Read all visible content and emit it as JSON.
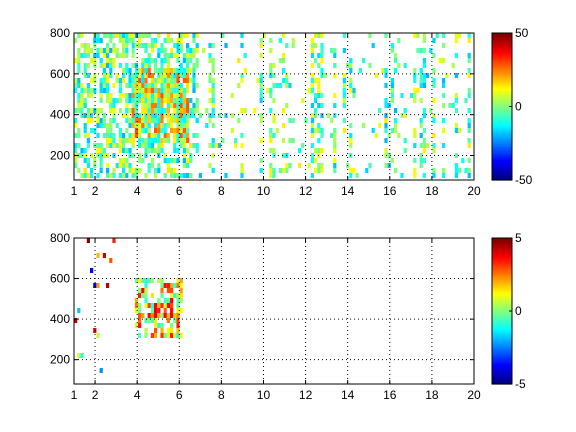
{
  "chart_data": [
    {
      "type": "heatmap",
      "title": "",
      "xlabel": "",
      "ylabel": "",
      "xlim": [
        1,
        20
      ],
      "ylim": [
        80,
        800
      ],
      "x_ticks": [
        1,
        2,
        4,
        6,
        8,
        10,
        12,
        14,
        16,
        18,
        20
      ],
      "x_tick_labels": [
        "1",
        "2",
        "4",
        "6",
        "8",
        "10",
        "12",
        "14",
        "16",
        "18",
        "20"
      ],
      "y_ticks": [
        200,
        400,
        600,
        800
      ],
      "y_tick_labels": [
        "200",
        "400",
        "600",
        "800"
      ],
      "grid": true,
      "colorbar": {
        "colormap": "jet",
        "clim": [
          -50,
          50
        ],
        "ticks": [
          -50,
          0,
          50
        ],
        "tick_labels": [
          "-50",
          "0",
          "50"
        ]
      },
      "pattern": {
        "description_values": "dense scattered cells; strongest cluster",
        "cluster_x": [
          3.8,
          6.4
        ],
        "cluster_y": [
          260,
          640
        ],
        "cluster_value_range": [
          -15,
          30
        ],
        "background_value_range": [
          -20,
          15
        ],
        "background_coverage": "dense for x < 7, sparse vertical streaks for x > 7"
      }
    },
    {
      "type": "heatmap",
      "title": "",
      "xlabel": "",
      "ylabel": "",
      "xlim": [
        1,
        20
      ],
      "ylim": [
        80,
        800
      ],
      "x_ticks": [
        1,
        2,
        4,
        6,
        8,
        10,
        12,
        14,
        16,
        18,
        20
      ],
      "x_tick_labels": [
        "1",
        "2",
        "4",
        "6",
        "8",
        "10",
        "12",
        "14",
        "16",
        "18",
        "20"
      ],
      "y_ticks": [
        200,
        400,
        600,
        800
      ],
      "y_tick_labels": [
        "200",
        "400",
        "600",
        "800"
      ],
      "grid": true,
      "colorbar": {
        "colormap": "jet",
        "clim": [
          -5,
          5
        ],
        "ticks": [
          -5,
          0,
          5
        ],
        "tick_labels": [
          "-5",
          "0",
          "5"
        ]
      },
      "pattern": {
        "cluster_x": [
          3.9,
          6.2
        ],
        "cluster_y": [
          300,
          600
        ],
        "cluster_value_range": [
          -1,
          4
        ],
        "background_coverage": "mostly empty, few isolated cells near x = 1-3"
      }
    }
  ]
}
